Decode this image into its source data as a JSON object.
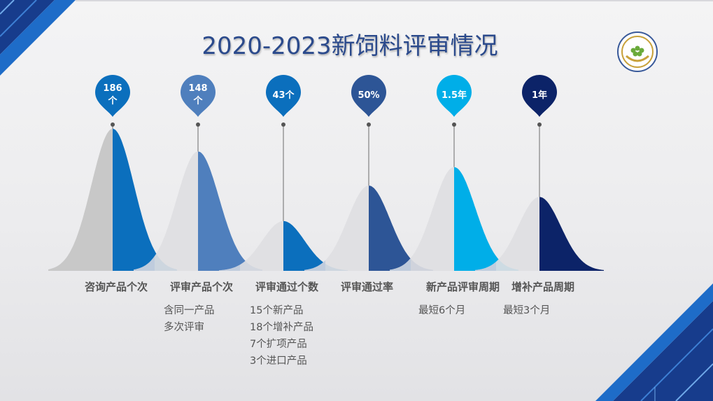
{
  "slide": {
    "title": "2020-2023新饲料评审情况"
  },
  "colors": {
    "grey_left": "#c8c8c8",
    "light_left": "#dedee2",
    "items": [
      "#0b6fbd",
      "#4f7fbd",
      "#0b6fbd",
      "#2d5596",
      "#00aee8",
      "#0c2368"
    ]
  },
  "chart_data": {
    "type": "area",
    "description_scale": "relative bell-curve heights",
    "items": [
      {
        "value_label": "186个",
        "value_lines": [
          "186",
          "个"
        ],
        "label": "咨询产品个次",
        "details": [],
        "height": 1.0
      },
      {
        "value_label": "148个",
        "value_lines": [
          "148",
          "个"
        ],
        "label": "评审产品个次",
        "details": [
          "含同一产品",
          "多次评审"
        ],
        "height": 0.84
      },
      {
        "value_label": "43个",
        "value_lines": [
          "43个"
        ],
        "label": "评审通过个数",
        "details": [
          "15个新产品",
          "18个增补产品",
          "7个扩项产品",
          "3个进口产品"
        ],
        "height": 0.35
      },
      {
        "value_label": "50%",
        "value_lines": [
          "50%"
        ],
        "label": "评审通过率",
        "details": [],
        "height": 0.6
      },
      {
        "value_label": "1.5年",
        "value_lines": [
          "1.5年"
        ],
        "label": "新产品评审周期",
        "details": [
          "最短6个月"
        ],
        "height": 0.73
      },
      {
        "value_label": "1年",
        "value_lines": [
          "1年"
        ],
        "label": "增补产品周期",
        "details": [
          "最短3个月"
        ],
        "height": 0.52
      }
    ]
  }
}
